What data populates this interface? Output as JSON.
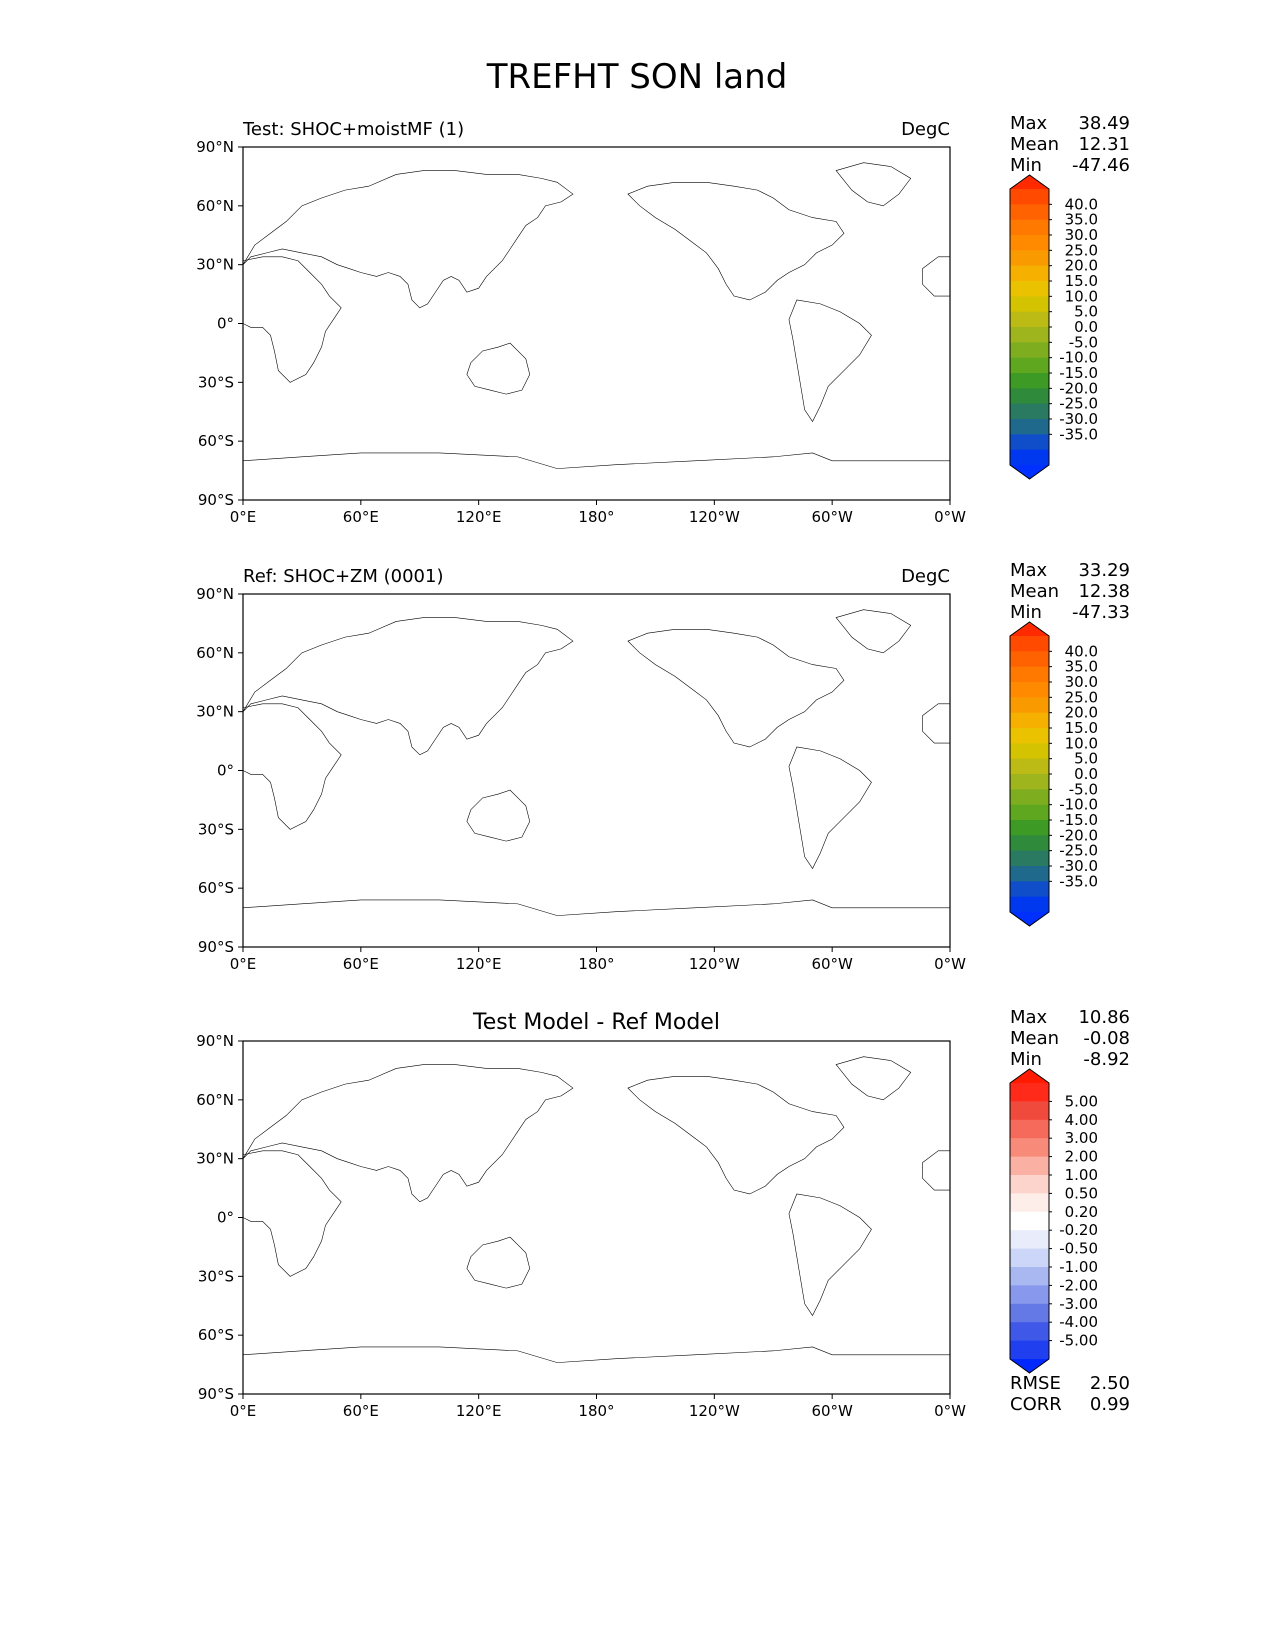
{
  "title": "TREFHT SON land",
  "colors": {
    "land_outline": "#000000",
    "frame": "#000000",
    "ocean": "#ffffff"
  },
  "axis_ticks": {
    "lat": [
      "90°N",
      "60°N",
      "30°N",
      "0°",
      "30°S",
      "60°S",
      "90°S"
    ],
    "lon": [
      "0°E",
      "60°E",
      "120°E",
      "180°",
      "120°W",
      "60°W",
      "0°W"
    ]
  },
  "panels": [
    {
      "id": "test",
      "title_left": "Test: SHOC+moistMF (1)",
      "title_center": "",
      "units": "DegC",
      "stats": [
        {
          "label": "Max",
          "value": "38.49"
        },
        {
          "label": "Mean",
          "value": "12.31"
        },
        {
          "label": "Min",
          "value": "-47.46"
        }
      ],
      "colorbar": {
        "colormap": "temperature",
        "labels": [
          "40.0",
          "35.0",
          "30.0",
          "25.0",
          "20.0",
          "15.0",
          "10.0",
          "5.0",
          "0.0",
          "-5.0",
          "-10.0",
          "-15.0",
          "-20.0",
          "-25.0",
          "-30.0",
          "-35.0"
        ],
        "colors": [
          "#ff4a00",
          "#ff6200",
          "#ff7800",
          "#ff8a00",
          "#f99b00",
          "#f6b100",
          "#eac200",
          "#d4c300",
          "#bcbb16",
          "#9fb51d",
          "#7eae1f",
          "#5ea71f",
          "#3d9a24",
          "#2f8a3c",
          "#2a7a62",
          "#1f6a8c",
          "#0f4ec8",
          "#0038f0"
        ],
        "top_color": "#ff2a00",
        "bottom_color": "#0030ff"
      },
      "extra_stats": []
    },
    {
      "id": "ref",
      "title_left": "Ref: SHOC+ZM (0001)",
      "title_center": "",
      "units": "DegC",
      "stats": [
        {
          "label": "Max",
          "value": "33.29"
        },
        {
          "label": "Mean",
          "value": "12.38"
        },
        {
          "label": "Min",
          "value": "-47.33"
        }
      ],
      "colorbar": {
        "colormap": "temperature",
        "labels": [
          "40.0",
          "35.0",
          "30.0",
          "25.0",
          "20.0",
          "15.0",
          "10.0",
          "5.0",
          "0.0",
          "-5.0",
          "-10.0",
          "-15.0",
          "-20.0",
          "-25.0",
          "-30.0",
          "-35.0"
        ],
        "colors": [
          "#ff4a00",
          "#ff6200",
          "#ff7800",
          "#ff8a00",
          "#f99b00",
          "#f6b100",
          "#eac200",
          "#d4c300",
          "#bcbb16",
          "#9fb51d",
          "#7eae1f",
          "#5ea71f",
          "#3d9a24",
          "#2f8a3c",
          "#2a7a62",
          "#1f6a8c",
          "#0f4ec8",
          "#0038f0"
        ],
        "top_color": "#ff2a00",
        "bottom_color": "#0030ff"
      },
      "extra_stats": []
    },
    {
      "id": "diff",
      "title_left": "",
      "title_center": "Test Model - Ref Model",
      "units": "",
      "stats": [
        {
          "label": "Max",
          "value": "10.86"
        },
        {
          "label": "Mean",
          "value": "-0.08"
        },
        {
          "label": "Min",
          "value": "-8.92"
        }
      ],
      "colorbar": {
        "colormap": "difference",
        "labels": [
          "5.00",
          "4.00",
          "3.00",
          "2.00",
          "1.00",
          "0.50",
          "0.20",
          "-0.20",
          "-0.50",
          "-1.00",
          "-2.00",
          "-3.00",
          "-4.00",
          "-5.00"
        ],
        "colors": [
          "#ff2a1a",
          "#f04a3c",
          "#f56a5a",
          "#f88a7a",
          "#fbb0a4",
          "#fdd4cc",
          "#fdeeea",
          "#ffffff",
          "#e8ecfb",
          "#ccd6f8",
          "#aab8f2",
          "#8898ec",
          "#6478e6",
          "#4058e8",
          "#2040f0"
        ],
        "top_color": "#ff1a00",
        "bottom_color": "#0028ff"
      },
      "extra_stats": [
        {
          "label": "RMSE",
          "value": "2.50"
        },
        {
          "label": "CORR",
          "value": "0.99"
        }
      ]
    }
  ]
}
